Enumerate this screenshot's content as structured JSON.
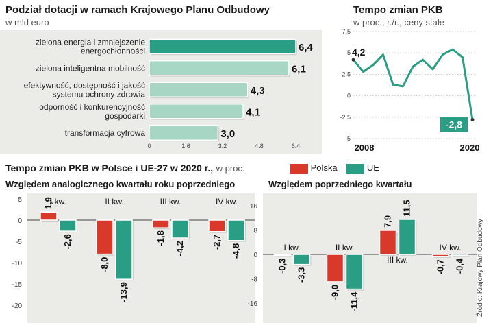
{
  "colors": {
    "teal": "#2a9d85",
    "teal_light": "#a7d6c5",
    "red": "#d9392b",
    "panel": "#ebebe8"
  },
  "grants": {
    "title": "Podział dotacji w ramach Krajowego Planu Odbudowy",
    "unit": "w mld euro"
  },
  "gdp_trend": {
    "title": "Tempo zmian PKB",
    "unit": "w proc., r./r., ceny stałe"
  },
  "quarterly": {
    "title": "Tempo zmian PKB w Polsce i UE-27 w 2020 r.,",
    "unit": "w proc.",
    "legend_polska": "Polska",
    "legend_ue": "UE",
    "left_title": "Względem analogicznego kwartału roku poprzedniego",
    "right_title": "Względem poprzedniego kwartału"
  },
  "source": "Źródło: Krajowy Plan Odbudowy",
  "chart_data": [
    {
      "type": "bar",
      "orientation": "horizontal",
      "title": "Podział dotacji w ramach Krajowego Planu Odbudowy",
      "unit": "w mld euro",
      "categories": [
        [
          "zielona energia i zmniejszenie",
          "energochłonności"
        ],
        [
          "zielona inteligentna mobilność"
        ],
        [
          "efektywność, dostępność i jakość",
          "systemu ochrony zdrowia"
        ],
        [
          "odporność i konkurencyjność",
          "gospodarki"
        ],
        [
          "transformacja cyfrowa"
        ]
      ],
      "values": [
        6.4,
        6.1,
        4.3,
        4.1,
        3.0
      ],
      "value_labels": [
        "6,4",
        "6,1",
        "4,3",
        "4,1",
        "3,0"
      ],
      "xlim": [
        0,
        6.4
      ],
      "xticks": [
        0,
        1.6,
        3.2,
        4.8,
        6.4
      ],
      "xtick_labels": [
        "0",
        "1.6",
        "3.2",
        "4.8",
        "6.4"
      ]
    },
    {
      "type": "line",
      "title": "Tempo zmian PKB",
      "unit": "w proc., r./r., ceny stałe",
      "x": [
        2008,
        2009,
        2010,
        2011,
        2012,
        2013,
        2014,
        2015,
        2016,
        2017,
        2018,
        2019,
        2020
      ],
      "values": [
        4.2,
        2.8,
        3.6,
        4.8,
        1.3,
        1.1,
        3.4,
        4.2,
        3.1,
        4.8,
        5.4,
        4.5,
        -2.8
      ],
      "xlabels": [
        "2008",
        "2020"
      ],
      "first_label": "4,2",
      "last_label": "-2,8",
      "ylim": [
        -5,
        7.5
      ],
      "yticks": [
        -5,
        -2.5,
        0,
        2.5,
        5,
        7.5
      ],
      "ytick_labels": [
        "-5",
        "-2.5",
        "0",
        "2.5",
        "5",
        "7.5"
      ]
    },
    {
      "type": "bar",
      "title": "Względem analogicznego kwartału roku poprzedniego",
      "categories": [
        "I kw.",
        "II kw.",
        "III kw.",
        "IV kw."
      ],
      "series": [
        {
          "name": "Polska",
          "values": [
            1.9,
            -8.0,
            -1.8,
            -2.7
          ],
          "labels": [
            "1,9",
            "-8,0",
            "-1,8",
            "-2,7"
          ]
        },
        {
          "name": "UE",
          "values": [
            -2.6,
            -13.9,
            -4.2,
            -4.8
          ],
          "labels": [
            "-2,6",
            "-13,9",
            "-4,2",
            "-4,8"
          ]
        }
      ],
      "ylim": [
        -20,
        5
      ],
      "yticks": [
        5,
        0,
        -5,
        -10,
        -15,
        -20
      ],
      "ytick_labels": [
        "5",
        "0",
        "-5",
        "-10",
        "-15",
        "-20"
      ]
    },
    {
      "type": "bar",
      "title": "Względem poprzedniego kwartału",
      "categories": [
        "I kw.",
        "II kw.",
        "III kw.",
        "IV kw."
      ],
      "series": [
        {
          "name": "Polska",
          "values": [
            -0.3,
            -9.0,
            7.9,
            -0.7
          ],
          "labels": [
            "-0,3",
            "-9,0",
            "7,9",
            "-0,7"
          ]
        },
        {
          "name": "UE",
          "values": [
            -3.3,
            -11.4,
            11.5,
            -0.4
          ],
          "labels": [
            "-3,3",
            "-11,4",
            "11,5",
            "-0,4"
          ]
        }
      ],
      "ylim": [
        -16,
        16
      ],
      "yticks": [
        16,
        8,
        0,
        -8,
        -16
      ],
      "ytick_labels": [
        "16",
        "8",
        "0",
        "-8",
        "-16"
      ]
    }
  ]
}
